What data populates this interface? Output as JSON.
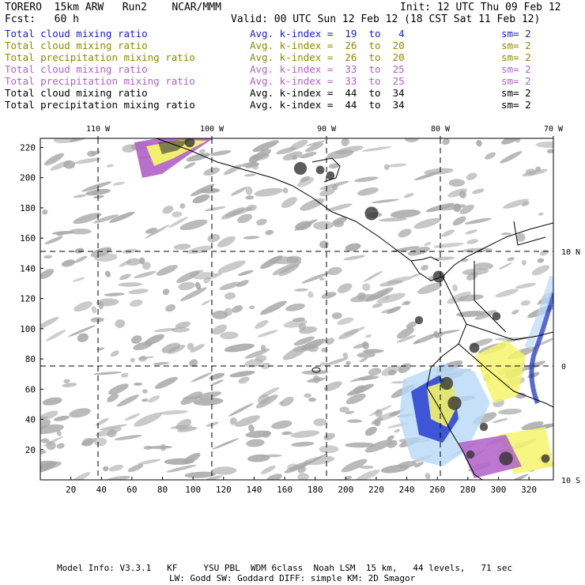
{
  "header": {
    "title": "TORERO  15km ARW   Run2    NCAR/MMM",
    "init": "Init: 12 UTC Thu 09 Feb 12",
    "fcst": "Fcst:   60 h",
    "valid": "Valid: 00 UTC Sun 12 Feb 12 (18 CST Sat 11 Feb 12)"
  },
  "legend": [
    {
      "field": "Total cloud mixing ratio",
      "kindex": "Avg. k-index =  19  to   4",
      "sm": "sm= 2",
      "color": "#1a1ad6"
    },
    {
      "field": "Total cloud mixing ratio",
      "kindex": "Avg. k-index =  26  to  20",
      "sm": "sm= 2",
      "color": "#8c8a00"
    },
    {
      "field": "Total precipitation mixing ratio",
      "kindex": "Avg. k-index =  26  to  20",
      "sm": "sm= 2",
      "color": "#8c8a00"
    },
    {
      "field": "Total cloud mixing ratio",
      "kindex": "Avg. k-index =  33  to  25",
      "sm": "sm= 2",
      "color": "#b060c8"
    },
    {
      "field": "Total precipitation mixing ratio",
      "kindex": "Avg. k-index =  33  to  25",
      "sm": "sm= 2",
      "color": "#b060c8"
    },
    {
      "field": "Total cloud mixing ratio",
      "kindex": "Avg. k-index =  44  to  34",
      "sm": "sm= 2",
      "color": "#000000"
    },
    {
      "field": "Total precipitation mixing ratio",
      "kindex": "Avg. k-index =  44  to  34",
      "sm": "sm= 2",
      "color": "#000000"
    }
  ],
  "map": {
    "lon_labels": [
      "110 W",
      "100 W",
      "90 W",
      "80 W",
      "70 W"
    ],
    "lat_labels": [
      "10 N",
      "0",
      "10 S"
    ],
    "y_ticks": [
      "220",
      "200",
      "180",
      "160",
      "140",
      "120",
      "100",
      "80",
      "60",
      "40",
      "20"
    ],
    "x_ticks": [
      "20",
      "40",
      "60",
      "80",
      "100",
      "120",
      "140",
      "160",
      "180",
      "200",
      "220",
      "240",
      "260",
      "280",
      "300",
      "320"
    ],
    "colors": {
      "gray": "#a8a8a8",
      "dark": "#333333",
      "yellow": "#f4f46a",
      "purple": "#b060c8",
      "blue": "#1028c8",
      "lightblue": "#b8d8f8"
    }
  },
  "footer": {
    "line1": "Model Info: V3.3.1   KF     YSU PBL  WDM 6class  Noah LSM  15 km,   44 levels,   71 sec",
    "line2": "LW: Godd SW: Goddard DIFF: simple KM: 2D Smagor"
  }
}
